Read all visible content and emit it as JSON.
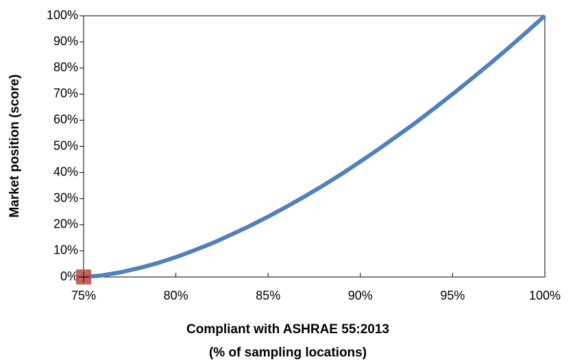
{
  "chart_data": {
    "type": "line",
    "ylabel": "Market position (score)",
    "xlabel": [
      "Compliant with ASHRAE 55:2013",
      "(% of sampling locations)"
    ],
    "x": [
      75,
      76,
      77,
      78,
      79,
      80,
      81,
      82,
      83,
      84,
      85,
      86,
      87,
      88,
      89,
      90,
      91,
      92,
      93,
      94,
      95,
      96,
      97,
      98,
      99,
      100
    ],
    "series": [
      {
        "name": "Market position",
        "color": "#4f81bd",
        "values": [
          0,
          0.6,
          1.8,
          3.4,
          5.3,
          7.6,
          10.2,
          13.0,
          16.2,
          19.5,
          23.1,
          26.9,
          30.9,
          35.1,
          39.5,
          44.2,
          49.0,
          54.0,
          59.1,
          64.5,
          70.0,
          75.7,
          81.5,
          87.5,
          93.7,
          100
        ]
      }
    ],
    "marker": {
      "x": 75,
      "y": 0,
      "color": "#c0504d"
    },
    "xlim": [
      75,
      100
    ],
    "xticks": [
      {
        "value": 75,
        "label": "75%"
      },
      {
        "value": 80,
        "label": "80%"
      },
      {
        "value": 85,
        "label": "85%"
      },
      {
        "value": 90,
        "label": "90%"
      },
      {
        "value": 95,
        "label": "95%"
      },
      {
        "value": 100,
        "label": "100%"
      }
    ],
    "ylim": [
      0,
      100
    ],
    "yticks": [
      {
        "value": 0,
        "label": "0%"
      },
      {
        "value": 10,
        "label": "10%"
      },
      {
        "value": 20,
        "label": "20%"
      },
      {
        "value": 30,
        "label": "30%"
      },
      {
        "value": 40,
        "label": "40%"
      },
      {
        "value": 50,
        "label": "50%"
      },
      {
        "value": 60,
        "label": "60%"
      },
      {
        "value": 70,
        "label": "70%"
      },
      {
        "value": 80,
        "label": "80%"
      },
      {
        "value": 90,
        "label": "90%"
      },
      {
        "value": 100,
        "label": "100%"
      }
    ]
  }
}
